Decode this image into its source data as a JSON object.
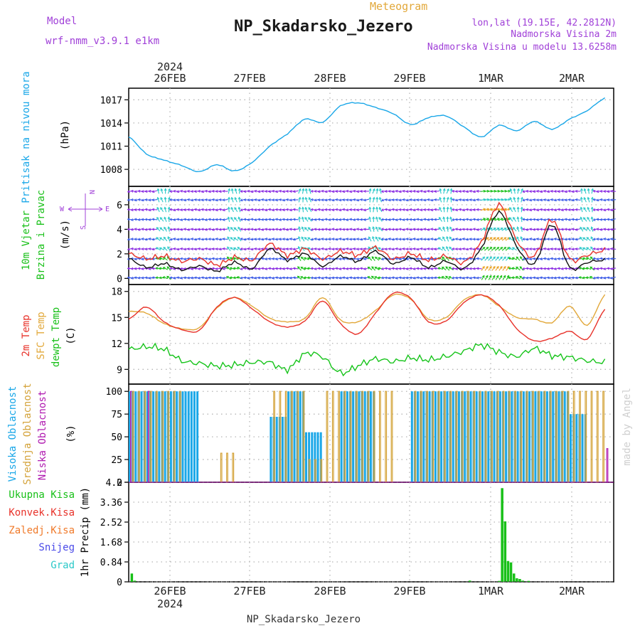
{
  "header": {
    "model_label": "Model",
    "model_name": "wrf-nmm_v3.9.1 e1km",
    "product": "Meteogram",
    "station": "NP_Skadarsko_Jezero",
    "lonlat": "lon,lat (19.15E, 42.2812N)",
    "elevation": "Nadmorska Visina 2m",
    "model_elevation": "Nadmorska Visina u modelu 13.6258m",
    "footer_station": "NP_Skadarsko_Jezero",
    "watermark": "made by Angel"
  },
  "colors": {
    "pressure": "#1aa7e8",
    "temp2m": "#e8322a",
    "sfc_temp": "#e2a83a",
    "dewpoint": "#16c41a",
    "cloud_high": "#1aa7e8",
    "cloud_mid": "#d4a33a",
    "cloud_low": "#b01ab0",
    "precip_total": "#18c018",
    "precip_conv": "#e8322a",
    "precip_frozen": "#f07a2a",
    "snow": "#4a4ae8",
    "graupel": "#2ac8c8",
    "wind_title": "#18c018",
    "purple_text": "#a040d8"
  },
  "chart_data": [
    {
      "type": "line",
      "panel": "pressure",
      "ylabel_main": "Pritisak na nivou mora",
      "ylabel_unit": "(hPa)",
      "yticks": [
        1008,
        1011,
        1014,
        1017
      ],
      "ylim": [
        1005.8,
        1018.5
      ],
      "top_axis_year": "2024",
      "date_labels": [
        "26FEB",
        "27FEB",
        "28FEB",
        "29FEB",
        "1MAR",
        "2MAR"
      ],
      "x_hours": [
        0,
        6,
        12,
        18,
        24,
        30,
        36,
        42,
        48,
        54,
        60,
        66,
        72,
        78,
        84,
        90,
        96,
        102,
        108,
        114,
        120,
        126,
        132,
        138,
        144,
        150,
        156,
        162
      ],
      "series": [
        {
          "name": "MSLP",
          "values": [
            1012.2,
            1010.0,
            1009.2,
            1008.5,
            1007.7,
            1008.6,
            1007.8,
            1008.9,
            1011.0,
            1012.6,
            1014.5,
            1014.1,
            1016.2,
            1016.6,
            1016.0,
            1015.2,
            1013.8,
            1014.7,
            1014.9,
            1013.5,
            1012.2,
            1013.7,
            1013.0,
            1014.2,
            1013.2,
            1014.5,
            1015.6,
            1017.2
          ]
        }
      ]
    },
    {
      "type": "line",
      "panel": "wind",
      "ylabel_main": "10m Vjetar",
      "ylabel_sub": "Brzina i Pravac",
      "ylabel_unit": "(m/s)",
      "compass_n": "N",
      "compass_w": "W",
      "compass_e": "E",
      "compass_s": "S",
      "yticks": [
        0,
        2,
        4,
        6
      ],
      "ylim": [
        -0.5,
        7.5
      ],
      "series": [
        {
          "name": "wind speed",
          "values": [
            1.6,
            0.9,
            1.2,
            0.7,
            1.0,
            0.6,
            1.3,
            0.8,
            2.4,
            1.5,
            2.0,
            1.0,
            1.8,
            1.4,
            2.2,
            1.2,
            1.7,
            0.9,
            1.4,
            0.8,
            2.5,
            5.4,
            2.6,
            1.2,
            4.4,
            0.9,
            1.3,
            1.5
          ]
        },
        {
          "name": "wind gust",
          "values": [
            2.0,
            1.6,
            1.8,
            1.4,
            1.6,
            1.1,
            1.7,
            1.5,
            2.8,
            1.9,
            2.4,
            1.6,
            2.2,
            1.9,
            2.5,
            1.6,
            2.0,
            1.5,
            1.8,
            1.3,
            3.0,
            6.0,
            3.1,
            1.8,
            4.8,
            1.6,
            1.9,
            2.3
          ]
        }
      ]
    },
    {
      "type": "line",
      "panel": "temperature",
      "ylabel_a": "2m Temp",
      "ylabel_b": "SFC Temp",
      "ylabel_c": "dewpt Temp",
      "ylabel_unit": "(C)",
      "yticks": [
        9,
        12,
        15,
        18
      ],
      "ylim": [
        7.3,
        18.8
      ],
      "series": [
        {
          "name": "2m Temp",
          "values": [
            14.8,
            16.2,
            14.5,
            13.6,
            13.5,
            16.2,
            17.3,
            16.0,
            14.5,
            13.9,
            14.6,
            16.9,
            14.3,
            13.1,
            15.5,
            17.8,
            17.2,
            14.5,
            14.6,
            16.7,
            17.6,
            16.4,
            13.7,
            12.3,
            12.6,
            13.4,
            12.5,
            15.9
          ]
        },
        {
          "name": "SFC Temp",
          "values": [
            15.7,
            15.5,
            14.3,
            13.7,
            13.8,
            16.1,
            17.3,
            16.3,
            14.9,
            14.5,
            14.9,
            17.3,
            14.7,
            14.5,
            15.8,
            17.6,
            17.1,
            14.8,
            15.0,
            17.0,
            17.6,
            16.3,
            15.0,
            14.8,
            14.4,
            16.3,
            14.1,
            17.6
          ]
        },
        {
          "name": "dewpt Temp",
          "values": [
            11.3,
            11.6,
            11.3,
            10.0,
            9.7,
            9.4,
            9.5,
            9.8,
            9.8,
            9.0,
            10.8,
            10.4,
            8.6,
            9.4,
            10.2,
            9.9,
            10.3,
            10.1,
            10.5,
            11.1,
            11.8,
            11.0,
            10.5,
            11.4,
            10.6,
            10.4,
            10.0,
            9.8
          ]
        }
      ]
    },
    {
      "type": "bar",
      "panel": "clouds",
      "ylabel_a": "Visoka Oblacnost",
      "ylabel_b": "Srednja Oblacnost",
      "ylabel_c": "Niska Oblacnost",
      "ylabel_unit": "(%)",
      "yticks": [
        0,
        25,
        50,
        75,
        100
      ],
      "ylim": [
        0,
        108
      ],
      "series": [
        {
          "name": "Visoka Oblacnost",
          "values": [
            100,
            100,
            100,
            100,
            0,
            0,
            0,
            0,
            72,
            100,
            55,
            0,
            100,
            100,
            0,
            0,
            100,
            100,
            100,
            100,
            100,
            100,
            100,
            100,
            100,
            75,
            0,
            0
          ]
        },
        {
          "name": "Srednja Oblacnost",
          "values": [
            100,
            100,
            100,
            0,
            0,
            32,
            0,
            0,
            100,
            100,
            25,
            100,
            100,
            100,
            100,
            0,
            100,
            100,
            100,
            100,
            100,
            100,
            100,
            100,
            100,
            100,
            100,
            0
          ]
        },
        {
          "name": "Niska Oblacnost",
          "values": [
            100,
            100,
            0,
            0,
            0,
            0,
            0,
            0,
            0,
            0,
            0,
            0,
            0,
            0,
            0,
            0,
            0,
            0,
            0,
            0,
            0,
            0,
            0,
            0,
            0,
            0,
            0,
            37
          ]
        }
      ]
    },
    {
      "type": "bar",
      "panel": "precip",
      "ylabel": "1hr Precip (mm)",
      "yticks": [
        0,
        0.84,
        1.68,
        2.52,
        3.36,
        4.2
      ],
      "ylim": [
        0,
        4.2
      ],
      "legend": [
        "Ukupna Kisa",
        "Konvek.Kisa",
        "Zaledj.Kisa",
        "Snijeg",
        "Grad"
      ],
      "bottom_date_labels": [
        "26FEB",
        "27FEB",
        "28FEB",
        "29FEB",
        "1MAR",
        "2MAR"
      ],
      "bottom_year": "2024",
      "series": [
        {
          "name": "Ukupna Kisa",
          "x": [
            1,
            2,
            116,
            126,
            127,
            128,
            129,
            130,
            131,
            132,
            133,
            134,
            136
          ],
          "values": [
            0.35,
            0.05,
            0.05,
            0.04,
            3.95,
            2.55,
            0.88,
            0.82,
            0.35,
            0.15,
            0.12,
            0.05,
            0.04
          ]
        }
      ]
    }
  ]
}
